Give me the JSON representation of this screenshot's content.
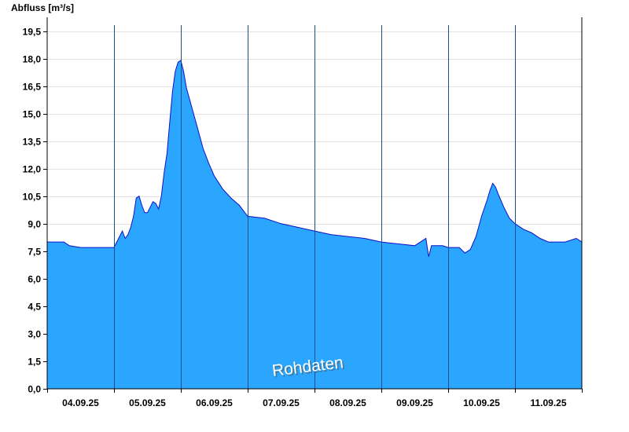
{
  "chart_data": {
    "type": "area",
    "ylabel": "Abfluss [m³/s]",
    "xlabel": "",
    "title": "",
    "watermark": "Rohdaten",
    "ylim": [
      0,
      20.25
    ],
    "yticks": [
      0,
      1.5,
      3,
      4.5,
      6,
      7.5,
      9,
      10.5,
      12,
      13.5,
      15,
      16.5,
      18,
      19.5
    ],
    "ytick_labels": [
      "0,0",
      "1,5",
      "3,0",
      "4,5",
      "6,0",
      "7,5",
      "9,0",
      "10,5",
      "12,0",
      "13,5",
      "15,0",
      "16,5",
      "18,0",
      "19,5"
    ],
    "x_start": "04.09.25 00:00",
    "x_end": "11.09.25 24:00",
    "days": [
      "04.09.25",
      "05.09.25",
      "06.09.25",
      "07.09.25",
      "08.09.25",
      "09.09.25",
      "10.09.25",
      "11.09.25"
    ],
    "grid": "horizontal",
    "colors": {
      "fill": "#2aa6ff",
      "line": "#1010c8",
      "grid": "#e2e2e2",
      "day_separator": "#1a4f8c"
    },
    "series": [
      {
        "x": [
          "04.09.25 00:00",
          "04.09.25 06:00",
          "04.09.25 08:00",
          "04.09.25 12:00",
          "04.09.25 18:00",
          "04.09.25 22:00",
          "05.09.25 00:00",
          "05.09.25 02:00",
          "05.09.25 03:00",
          "05.09.25 04:00",
          "05.09.25 05:00",
          "05.09.25 06:00",
          "05.09.25 07:00",
          "05.09.25 08:00",
          "05.09.25 09:00",
          "05.09.25 10:00",
          "05.09.25 11:00",
          "05.09.25 12:00",
          "05.09.25 13:00",
          "05.09.25 14:00",
          "05.09.25 15:00",
          "05.09.25 16:00",
          "05.09.25 17:00",
          "05.09.25 18:00",
          "05.09.25 19:00",
          "05.09.25 20:00",
          "05.09.25 21:00",
          "05.09.25 22:00",
          "05.09.25 23:00",
          "06.09.25 00:00",
          "06.09.25 01:00",
          "06.09.25 02:00",
          "06.09.25 04:00",
          "06.09.25 06:00",
          "06.09.25 08:00",
          "06.09.25 10:00",
          "06.09.25 12:00",
          "06.09.25 15:00",
          "06.09.25 18:00",
          "06.09.25 21:00",
          "07.09.25 00:00",
          "07.09.25 06:00",
          "07.09.25 12:00",
          "07.09.25 18:00",
          "08.09.25 00:00",
          "08.09.25 06:00",
          "08.09.25 12:00",
          "08.09.25 18:00",
          "09.09.25 00:00",
          "09.09.25 06:00",
          "09.09.25 12:00",
          "09.09.25 16:00",
          "09.09.25 17:00",
          "09.09.25 18:00",
          "09.09.25 22:00",
          "10.09.25 00:00",
          "10.09.25 04:00",
          "10.09.25 06:00",
          "10.09.25 08:00",
          "10.09.25 10:00",
          "10.09.25 12:00",
          "10.09.25 14:00",
          "10.09.25 15:00",
          "10.09.25 16:00",
          "10.09.25 17:00",
          "10.09.25 18:00",
          "10.09.25 20:00",
          "10.09.25 22:00",
          "11.09.25 00:00",
          "11.09.25 03:00",
          "11.09.25 06:00",
          "11.09.25 09:00",
          "11.09.25 12:00",
          "11.09.25 18:00",
          "11.09.25 22:00",
          "11.09.25 24:00"
        ],
        "y": [
          8.0,
          8.0,
          7.8,
          7.7,
          7.7,
          7.7,
          7.7,
          8.3,
          8.6,
          8.2,
          8.4,
          8.8,
          9.4,
          10.4,
          10.5,
          10.0,
          9.6,
          9.6,
          9.9,
          10.2,
          10.1,
          9.8,
          10.5,
          11.8,
          12.8,
          14.5,
          16.2,
          17.3,
          17.8,
          17.9,
          17.3,
          16.4,
          15.3,
          14.2,
          13.1,
          12.3,
          11.6,
          10.9,
          10.4,
          10.0,
          9.4,
          9.3,
          9.0,
          8.8,
          8.6,
          8.4,
          8.3,
          8.2,
          8.0,
          7.9,
          7.8,
          8.2,
          7.2,
          7.8,
          7.8,
          7.7,
          7.7,
          7.4,
          7.6,
          8.3,
          9.4,
          10.3,
          10.8,
          11.2,
          11.0,
          10.6,
          9.9,
          9.3,
          9.0,
          8.7,
          8.5,
          8.2,
          8.0,
          8.0,
          8.2,
          8.0
        ]
      }
    ]
  }
}
